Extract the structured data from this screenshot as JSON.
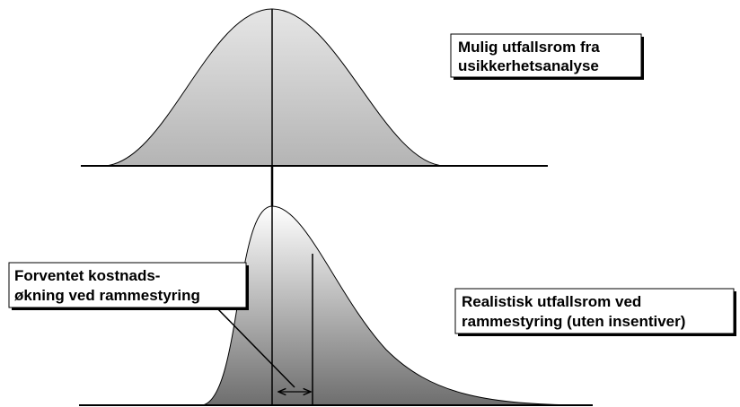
{
  "labels": [
    {
      "lines": [
        "Mulig utfallsrom fra",
        "usikkerhetsanalyse"
      ]
    },
    {
      "lines": [
        "Forventet kostnads-",
        "økning ved rammestyring"
      ]
    },
    {
      "lines": [
        "Realistisk utfallsrom ved",
        "rammestyring (uten insentiver)"
      ]
    }
  ]
}
